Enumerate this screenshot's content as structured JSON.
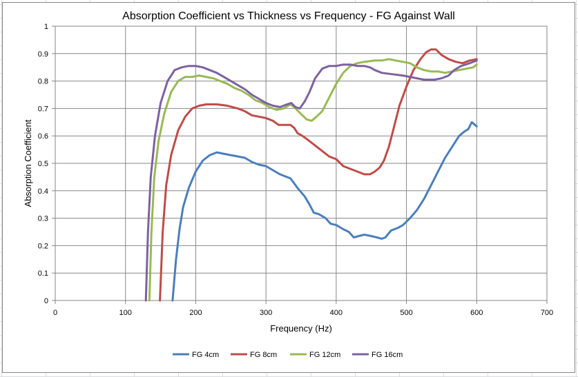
{
  "chart_data": {
    "type": "line",
    "title": "Absorption Coefficient vs Thickness vs Frequency - FG Against Wall",
    "xlabel": "Frequency (Hz)",
    "ylabel": "Absorption Coefficient",
    "xlim": [
      0,
      700
    ],
    "ylim": [
      0,
      1
    ],
    "xticks": [
      "0",
      "100",
      "200",
      "300",
      "400",
      "500",
      "600",
      "700"
    ],
    "yticks": [
      "0",
      "0.1",
      "0.2",
      "0.3",
      "0.4",
      "0.5",
      "0.6",
      "0.7",
      "0.8",
      "0.9",
      "1"
    ],
    "grid": true,
    "legend_position": "bottom",
    "series": [
      {
        "name": "FG 4cm",
        "color": "#4a7ebb",
        "points": [
          [
            167,
            0
          ],
          [
            172,
            0.15
          ],
          [
            177,
            0.26
          ],
          [
            182,
            0.34
          ],
          [
            190,
            0.41
          ],
          [
            200,
            0.47
          ],
          [
            210,
            0.51
          ],
          [
            220,
            0.53
          ],
          [
            230,
            0.54
          ],
          [
            240,
            0.535
          ],
          [
            250,
            0.53
          ],
          [
            260,
            0.525
          ],
          [
            270,
            0.52
          ],
          [
            280,
            0.505
          ],
          [
            290,
            0.495
          ],
          [
            300,
            0.49
          ],
          [
            310,
            0.475
          ],
          [
            320,
            0.46
          ],
          [
            335,
            0.445
          ],
          [
            345,
            0.41
          ],
          [
            355,
            0.38
          ],
          [
            362,
            0.35
          ],
          [
            368,
            0.32
          ],
          [
            375,
            0.315
          ],
          [
            385,
            0.3
          ],
          [
            392,
            0.28
          ],
          [
            400,
            0.275
          ],
          [
            410,
            0.26
          ],
          [
            418,
            0.25
          ],
          [
            425,
            0.23
          ],
          [
            432,
            0.235
          ],
          [
            440,
            0.24
          ],
          [
            450,
            0.235
          ],
          [
            458,
            0.23
          ],
          [
            465,
            0.225
          ],
          [
            470,
            0.23
          ],
          [
            478,
            0.255
          ],
          [
            488,
            0.265
          ],
          [
            495,
            0.275
          ],
          [
            505,
            0.3
          ],
          [
            515,
            0.33
          ],
          [
            525,
            0.37
          ],
          [
            535,
            0.42
          ],
          [
            545,
            0.47
          ],
          [
            555,
            0.52
          ],
          [
            565,
            0.56
          ],
          [
            575,
            0.6
          ],
          [
            582,
            0.615
          ],
          [
            588,
            0.625
          ],
          [
            593,
            0.65
          ],
          [
            600,
            0.635
          ]
        ]
      },
      {
        "name": "FG 8cm",
        "color": "#be4b48",
        "points": [
          [
            149,
            0
          ],
          [
            153,
            0.25
          ],
          [
            158,
            0.42
          ],
          [
            165,
            0.53
          ],
          [
            175,
            0.62
          ],
          [
            185,
            0.67
          ],
          [
            195,
            0.7
          ],
          [
            205,
            0.71
          ],
          [
            215,
            0.715
          ],
          [
            230,
            0.715
          ],
          [
            245,
            0.71
          ],
          [
            260,
            0.7
          ],
          [
            270,
            0.69
          ],
          [
            280,
            0.675
          ],
          [
            290,
            0.67
          ],
          [
            300,
            0.665
          ],
          [
            310,
            0.655
          ],
          [
            318,
            0.64
          ],
          [
            328,
            0.64
          ],
          [
            335,
            0.64
          ],
          [
            340,
            0.63
          ],
          [
            345,
            0.61
          ],
          [
            352,
            0.6
          ],
          [
            360,
            0.585
          ],
          [
            370,
            0.565
          ],
          [
            380,
            0.545
          ],
          [
            390,
            0.525
          ],
          [
            400,
            0.515
          ],
          [
            410,
            0.49
          ],
          [
            420,
            0.48
          ],
          [
            430,
            0.47
          ],
          [
            440,
            0.46
          ],
          [
            448,
            0.46
          ],
          [
            455,
            0.47
          ],
          [
            462,
            0.485
          ],
          [
            468,
            0.51
          ],
          [
            475,
            0.56
          ],
          [
            482,
            0.63
          ],
          [
            490,
            0.71
          ],
          [
            500,
            0.78
          ],
          [
            510,
            0.84
          ],
          [
            520,
            0.88
          ],
          [
            528,
            0.905
          ],
          [
            535,
            0.915
          ],
          [
            542,
            0.915
          ],
          [
            550,
            0.895
          ],
          [
            560,
            0.88
          ],
          [
            570,
            0.87
          ],
          [
            580,
            0.865
          ],
          [
            590,
            0.875
          ],
          [
            600,
            0.88
          ]
        ]
      },
      {
        "name": "FG 12cm",
        "color": "#98b954",
        "points": [
          [
            134,
            0
          ],
          [
            137,
            0.25
          ],
          [
            141,
            0.45
          ],
          [
            147,
            0.58
          ],
          [
            155,
            0.68
          ],
          [
            165,
            0.76
          ],
          [
            175,
            0.8
          ],
          [
            185,
            0.815
          ],
          [
            195,
            0.815
          ],
          [
            205,
            0.82
          ],
          [
            215,
            0.815
          ],
          [
            225,
            0.81
          ],
          [
            235,
            0.8
          ],
          [
            245,
            0.79
          ],
          [
            255,
            0.775
          ],
          [
            265,
            0.765
          ],
          [
            275,
            0.75
          ],
          [
            285,
            0.73
          ],
          [
            295,
            0.72
          ],
          [
            305,
            0.705
          ],
          [
            315,
            0.695
          ],
          [
            325,
            0.7
          ],
          [
            335,
            0.715
          ],
          [
            342,
            0.7
          ],
          [
            350,
            0.68
          ],
          [
            358,
            0.66
          ],
          [
            365,
            0.655
          ],
          [
            372,
            0.67
          ],
          [
            380,
            0.69
          ],
          [
            390,
            0.74
          ],
          [
            400,
            0.79
          ],
          [
            410,
            0.83
          ],
          [
            420,
            0.855
          ],
          [
            430,
            0.865
          ],
          [
            440,
            0.87
          ],
          [
            455,
            0.875
          ],
          [
            465,
            0.875
          ],
          [
            475,
            0.88
          ],
          [
            485,
            0.875
          ],
          [
            495,
            0.87
          ],
          [
            505,
            0.865
          ],
          [
            515,
            0.85
          ],
          [
            525,
            0.84
          ],
          [
            535,
            0.835
          ],
          [
            545,
            0.835
          ],
          [
            555,
            0.83
          ],
          [
            565,
            0.835
          ],
          [
            575,
            0.84
          ],
          [
            585,
            0.845
          ],
          [
            595,
            0.85
          ],
          [
            600,
            0.86
          ]
        ]
      },
      {
        "name": "FG 16cm",
        "color": "#7d60a0",
        "points": [
          [
            129,
            0
          ],
          [
            132,
            0.25
          ],
          [
            136,
            0.45
          ],
          [
            142,
            0.6
          ],
          [
            150,
            0.72
          ],
          [
            160,
            0.8
          ],
          [
            170,
            0.84
          ],
          [
            180,
            0.85
          ],
          [
            190,
            0.855
          ],
          [
            200,
            0.855
          ],
          [
            210,
            0.85
          ],
          [
            220,
            0.84
          ],
          [
            230,
            0.83
          ],
          [
            240,
            0.815
          ],
          [
            250,
            0.8
          ],
          [
            260,
            0.785
          ],
          [
            270,
            0.77
          ],
          [
            280,
            0.75
          ],
          [
            290,
            0.735
          ],
          [
            300,
            0.72
          ],
          [
            310,
            0.71
          ],
          [
            320,
            0.705
          ],
          [
            330,
            0.715
          ],
          [
            336,
            0.72
          ],
          [
            342,
            0.705
          ],
          [
            348,
            0.7
          ],
          [
            355,
            0.725
          ],
          [
            362,
            0.76
          ],
          [
            370,
            0.81
          ],
          [
            380,
            0.845
          ],
          [
            390,
            0.855
          ],
          [
            400,
            0.855
          ],
          [
            410,
            0.86
          ],
          [
            420,
            0.86
          ],
          [
            430,
            0.855
          ],
          [
            440,
            0.855
          ],
          [
            448,
            0.85
          ],
          [
            455,
            0.84
          ],
          [
            465,
            0.83
          ],
          [
            480,
            0.825
          ],
          [
            495,
            0.82
          ],
          [
            505,
            0.815
          ],
          [
            515,
            0.81
          ],
          [
            525,
            0.805
          ],
          [
            540,
            0.805
          ],
          [
            550,
            0.81
          ],
          [
            560,
            0.82
          ],
          [
            568,
            0.84
          ],
          [
            578,
            0.855
          ],
          [
            590,
            0.865
          ],
          [
            600,
            0.875
          ]
        ]
      }
    ]
  }
}
